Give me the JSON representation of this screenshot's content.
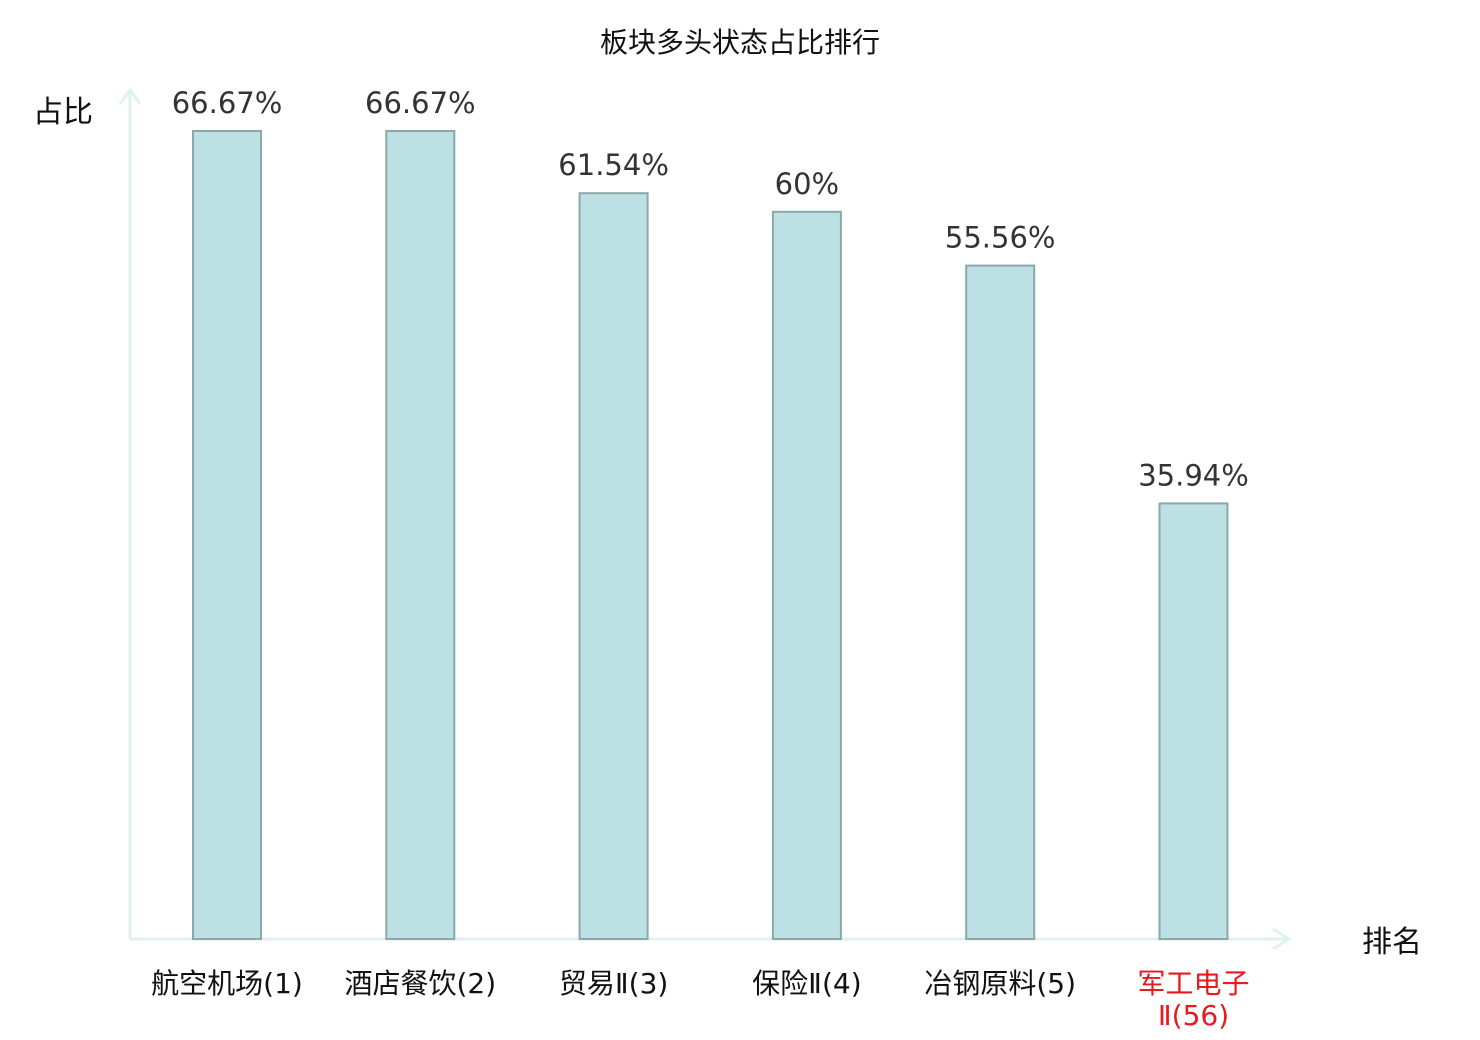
{
  "chart_data": {
    "type": "bar",
    "title": "板块多头状态占比排行",
    "ylabel": "占比",
    "xlabel": "排名",
    "categories": [
      "航空机场(1)",
      "酒店餐饮(2)",
      "贸易Ⅱ(3)",
      "保险Ⅱ(4)",
      "冶钢原料(5)",
      "军工电子Ⅱ(56)"
    ],
    "category_lines": [
      [
        "航空机场(1)"
      ],
      [
        "酒店餐饮(2)"
      ],
      [
        "贸易Ⅱ(3)"
      ],
      [
        "保险Ⅱ(4)"
      ],
      [
        "冶钢原料(5)"
      ],
      [
        "军工电子",
        "Ⅱ(56)"
      ]
    ],
    "values": [
      66.67,
      66.67,
      61.54,
      60,
      55.56,
      35.94
    ],
    "value_labels": [
      "66.67%",
      "66.67%",
      "61.54%",
      "60%",
      "55.56%",
      "35.94%"
    ],
    "highlight_index": 5,
    "ylim": [
      0,
      66.67
    ],
    "grid": false,
    "legend": "none",
    "colors": {
      "bar_fill": "#bce0e3",
      "bar_stroke": "#8aa8a8",
      "axis": "#dff2ef",
      "label": "#111111",
      "highlight_label": "#e8191f",
      "value_label": "#333333"
    }
  }
}
